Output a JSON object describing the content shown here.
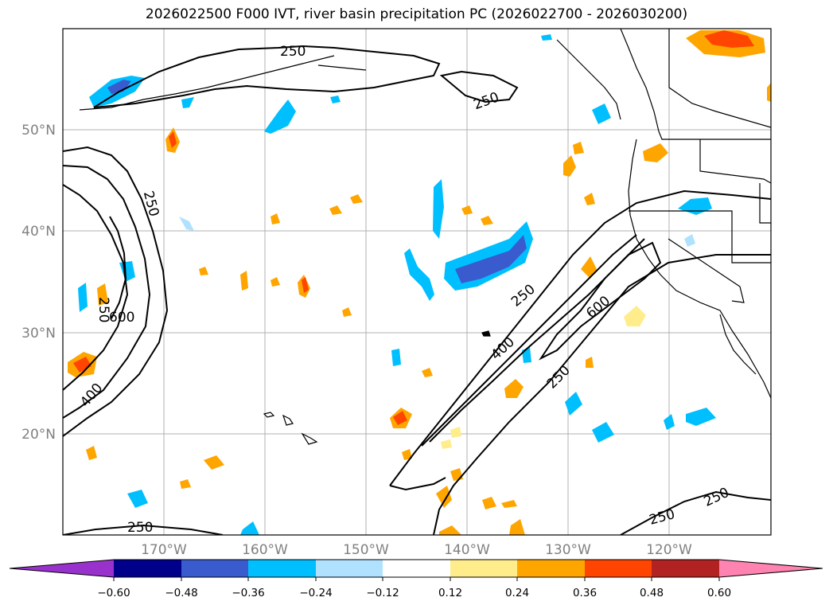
{
  "title": "2026022500 F000 IVT, river basin precipitation PC (2026022700 - 2026030200)",
  "map": {
    "lon_ticks": [
      "170°W",
      "160°W",
      "150°W",
      "140°W",
      "130°W",
      "120°W"
    ],
    "lat_ticks": [
      "50°N",
      "40°N",
      "30°N",
      "20°N"
    ],
    "contour_labels": [
      "250",
      "250",
      "250",
      "250",
      "600",
      "400",
      "250",
      "600",
      "400",
      "250",
      "250",
      "250",
      "250"
    ]
  },
  "colorbar": {
    "tick_labels": [
      "−0.60",
      "−0.48",
      "−0.36",
      "−0.24",
      "−0.12",
      "0.12",
      "0.24",
      "0.36",
      "0.48",
      "0.60"
    ],
    "colors": {
      "under": "#9932cc",
      "c1": "#00008b",
      "c2": "#3a5bcd",
      "c3": "#00bfff",
      "c4": "#b0e2ff",
      "c5": "#ffffff",
      "c6": "#ffec8b",
      "c7": "#ffa500",
      "c8": "#ff4500",
      "c9": "#b22222",
      "over": "#ff83b0"
    }
  }
}
